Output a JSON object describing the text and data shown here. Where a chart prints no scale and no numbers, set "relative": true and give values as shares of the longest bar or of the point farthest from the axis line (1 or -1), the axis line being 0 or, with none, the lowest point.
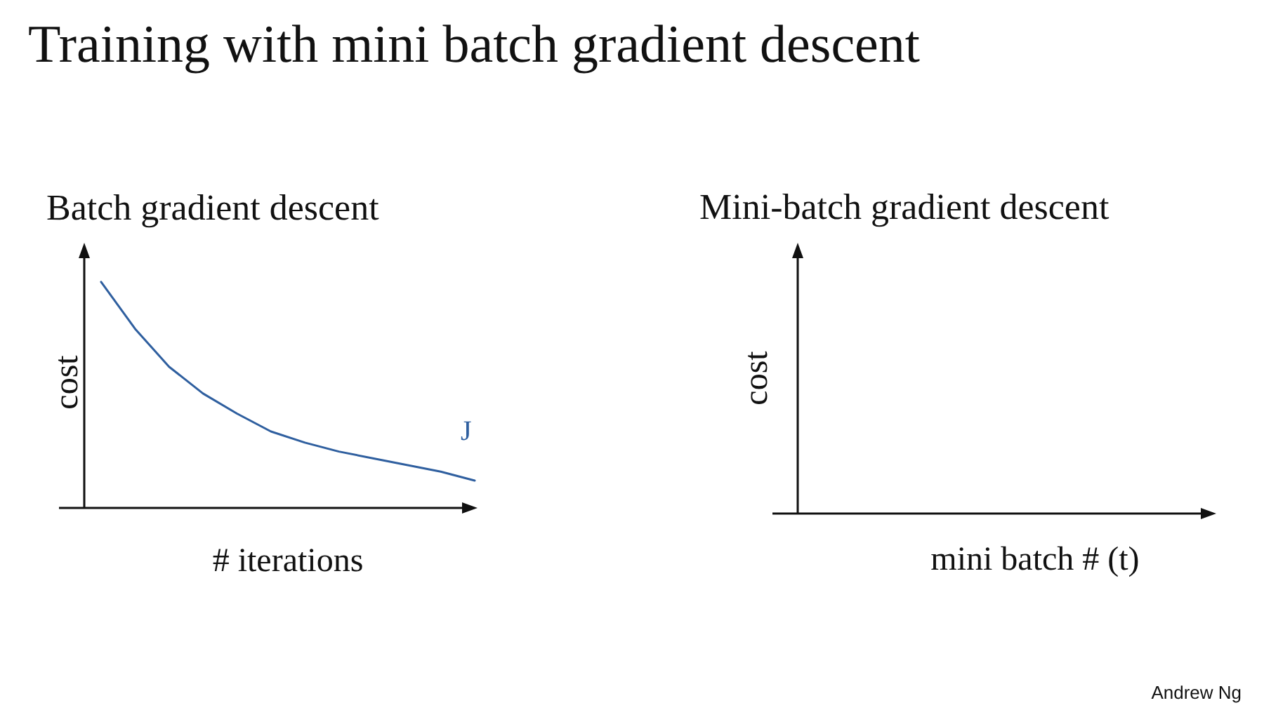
{
  "chart_data": [
    {
      "type": "other",
      "title": "Training with mini batch gradient descent"
    },
    {
      "type": "line",
      "title": "Batch gradient descent",
      "xlabel": "# iterations",
      "ylabel": "cost",
      "relative": true,
      "color": "#2f5f9f",
      "categories": [
        null,
        null,
        null,
        null,
        null,
        null,
        null,
        null,
        null,
        null,
        null,
        null
      ],
      "values": [
        1.0,
        0.79,
        0.62,
        0.5,
        0.41,
        0.33,
        0.28,
        0.24,
        0.21,
        0.18,
        0.15,
        0.11
      ],
      "annotations": [
        "J"
      ]
    },
    {
      "type": "other",
      "title": "Mini-batch gradient descent",
      "xlabel": "mini batch # (t)",
      "ylabel": "cost",
      "annotations": [
        "Andrew Ng"
      ]
    }
  ]
}
